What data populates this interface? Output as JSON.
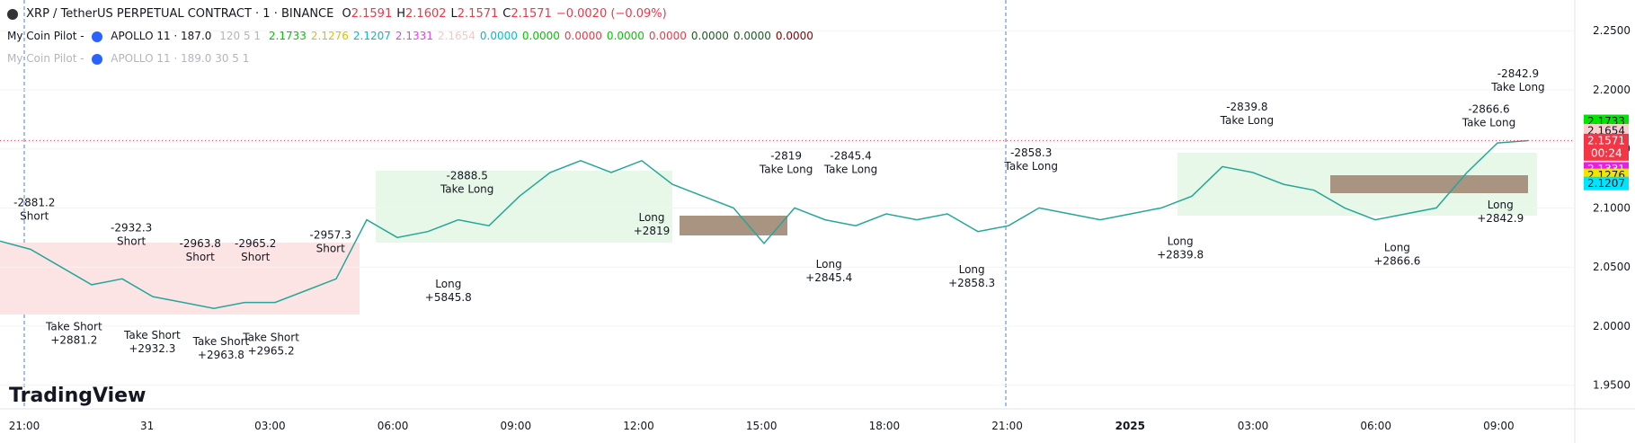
{
  "header": {
    "symbol": "XRP / TetherUS PERPETUAL CONTRACT · 1 · BINANCE",
    "ohlc": [
      {
        "label": "O",
        "value": "2.1591"
      },
      {
        "label": "H",
        "value": "2.1602"
      },
      {
        "label": "L",
        "value": "2.1571"
      },
      {
        "label": "C",
        "value": "2.1571"
      }
    ],
    "change": "−0.0020 (−0.09%)",
    "value_color": "#f23645"
  },
  "indicators": [
    {
      "name": "My Coin Pilot -",
      "study": "APOLLO 11 · 187.0",
      "params": "120 5 1",
      "values": [
        {
          "text": "2.1733",
          "color": "#00c800"
        },
        {
          "text": "2.1276",
          "color": "#d4c400"
        },
        {
          "text": "2.1207",
          "color": "#00bcd4"
        },
        {
          "text": "2.1331",
          "color": "#e040fb"
        },
        {
          "text": "2.1654",
          "color": "#f8c8c8"
        },
        {
          "text": "0.0000",
          "color": "#00bcd4"
        },
        {
          "text": "0.0000",
          "color": "#00c800"
        },
        {
          "text": "0.0000",
          "color": "#f23645"
        },
        {
          "text": "0.0000",
          "color": "#00c800"
        },
        {
          "text": "0.0000",
          "color": "#f23645"
        },
        {
          "text": "0.0000",
          "color": "#1b5e20"
        },
        {
          "text": "0.0000",
          "color": "#1b5e20"
        },
        {
          "text": "0.0000",
          "color": "#8b0000"
        }
      ]
    },
    {
      "name": "My Coin Pilot -",
      "study": "APOLLO 11 · 189.0 30 5 1"
    }
  ],
  "brand": "TradingView",
  "chart": {
    "type": "line",
    "ylim": [
      1.93,
      2.276
    ],
    "yticks": [
      {
        "value": 1.95,
        "label": "1.9500"
      },
      {
        "value": 2.0,
        "label": "2.0000"
      },
      {
        "value": 2.05,
        "label": "2.0500"
      },
      {
        "value": 2.1,
        "label": "2.1000"
      },
      {
        "value": 2.15,
        "label": "2.1500"
      },
      {
        "value": 2.2,
        "label": "2.2000"
      },
      {
        "value": 2.25,
        "label": "2.2500"
      }
    ],
    "x_labels": [
      "21:00",
      "31",
      "03:00",
      "06:00",
      "09:00",
      "12:00",
      "15:00",
      "18:00",
      "21:00",
      "2025",
      "03:00",
      "06:00",
      "09:00"
    ],
    "price_color": "#26a69a",
    "price_values": [
      2.072,
      2.065,
      2.05,
      2.035,
      2.04,
      2.025,
      2.02,
      2.015,
      2.02,
      2.02,
      2.03,
      2.04,
      2.09,
      2.075,
      2.08,
      2.09,
      2.085,
      2.11,
      2.13,
      2.14,
      2.13,
      2.14,
      2.12,
      2.11,
      2.1,
      2.07,
      2.1,
      2.09,
      2.085,
      2.095,
      2.09,
      2.095,
      2.08,
      2.085,
      2.1,
      2.095,
      2.09,
      2.095,
      2.1,
      2.11,
      2.135,
      2.13,
      2.12,
      2.115,
      2.1,
      2.09,
      2.095,
      2.1,
      2.13,
      2.155,
      2.157
    ],
    "price_tags": [
      {
        "value": 2.1733,
        "label": "2.1733",
        "color": "#00e600"
      },
      {
        "value": 2.1654,
        "label": "2.1654",
        "color": "#f8d0d0"
      },
      {
        "value": 2.1571,
        "label": "2.1571",
        "color": "#f23645",
        "timer": "00:24"
      },
      {
        "value": 2.1331,
        "label": "2.1331",
        "color": "#e91ee3"
      },
      {
        "value": 2.1276,
        "label": "2.1276",
        "color": "#f2e600"
      },
      {
        "value": 2.1207,
        "label": "2.1207",
        "color": "#00e5ff"
      }
    ],
    "annotations": [
      [
        "-2881.2",
        "Short"
      ],
      [
        "-2932.3",
        "Short"
      ],
      [
        "-2963.8",
        "Short"
      ],
      [
        "-2965.2",
        "Short"
      ],
      [
        "-2957.3",
        "Short"
      ],
      [
        "Take Short",
        "+2881.2"
      ],
      [
        "Take Short",
        "+2932.3"
      ],
      [
        "Take Short",
        "+2963.8"
      ],
      [
        "Take Short",
        "+2965.2"
      ],
      [
        "-2888.5",
        "Take Long"
      ],
      [
        "Long",
        "+5845.8"
      ],
      [
        "Long",
        "+2819"
      ],
      [
        "-2819",
        "Take Long"
      ],
      [
        "-2845.4",
        "Take Long"
      ],
      [
        "Long",
        "+2845.4"
      ],
      [
        "-2858.3",
        "Take Long"
      ],
      [
        "Long",
        "+2858.3"
      ],
      [
        "-2839.8",
        "Take Long"
      ],
      [
        "Long",
        "+2839.8"
      ],
      [
        "-2866.6",
        "Take Long"
      ],
      [
        "-2842.9",
        "Take Long"
      ],
      [
        "Long",
        "+2842.9"
      ],
      [
        "Long",
        "+2866.6"
      ]
    ]
  }
}
